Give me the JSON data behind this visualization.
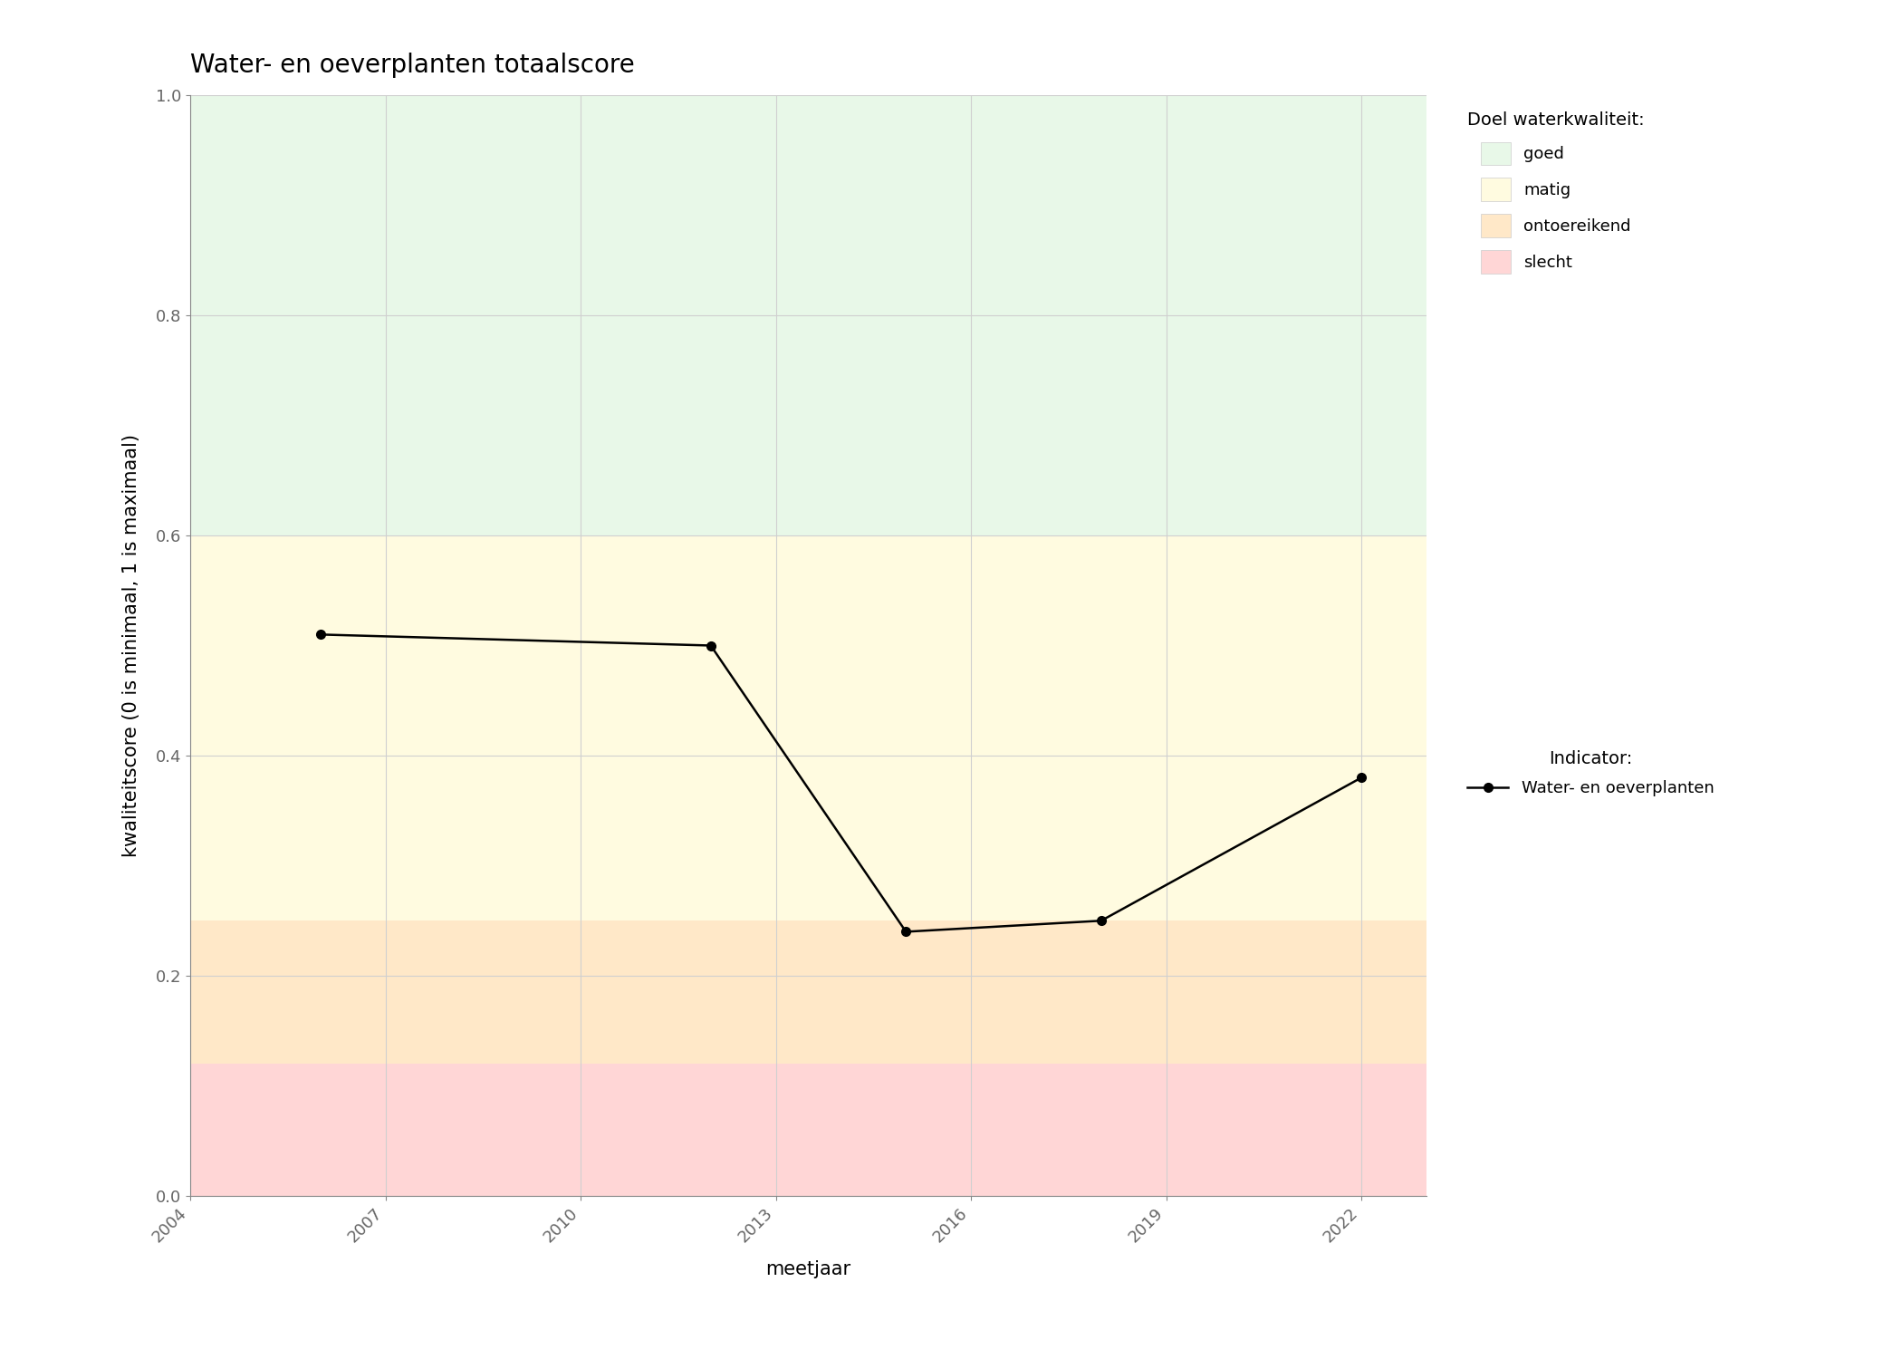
{
  "title": "Water- en oeverplanten totaalscore",
  "xlabel": "meetjaar",
  "ylabel": "kwaliteitscore (0 is minimaal, 1 is maximaal)",
  "xlim": [
    2004,
    2023
  ],
  "ylim": [
    0.0,
    1.0
  ],
  "xticks": [
    2004,
    2007,
    2010,
    2013,
    2016,
    2019,
    2022
  ],
  "yticks": [
    0.0,
    0.2,
    0.4,
    0.6,
    0.8,
    1.0
  ],
  "line_x": [
    2006,
    2012,
    2015,
    2018,
    2022
  ],
  "line_y": [
    0.51,
    0.5,
    0.24,
    0.25,
    0.38
  ],
  "line_color": "#000000",
  "line_width": 1.8,
  "marker": "o",
  "marker_size": 7,
  "bg_color": "#ffffff",
  "bands": [
    {
      "ymin": 0.0,
      "ymax": 0.12,
      "color": "#FFD6D6",
      "label": "slecht",
      "alpha": 1.0
    },
    {
      "ymin": 0.12,
      "ymax": 0.25,
      "color": "#FFE8C8",
      "label": "ontoereikend",
      "alpha": 1.0
    },
    {
      "ymin": 0.25,
      "ymax": 0.6,
      "color": "#FFFBE0",
      "label": "matig",
      "alpha": 1.0
    },
    {
      "ymin": 0.6,
      "ymax": 1.0,
      "color": "#E8F8E8",
      "label": "goed",
      "alpha": 1.0
    }
  ],
  "legend_title_doel": "Doel waterkwaliteit:",
  "legend_title_indicator": "Indicator:",
  "legend_indicator_label": "Water- en oeverplanten",
  "grid_color": "#d0d0d0",
  "grid_alpha": 1.0,
  "title_fontsize": 20,
  "axis_label_fontsize": 15,
  "tick_fontsize": 13,
  "legend_fontsize": 13
}
